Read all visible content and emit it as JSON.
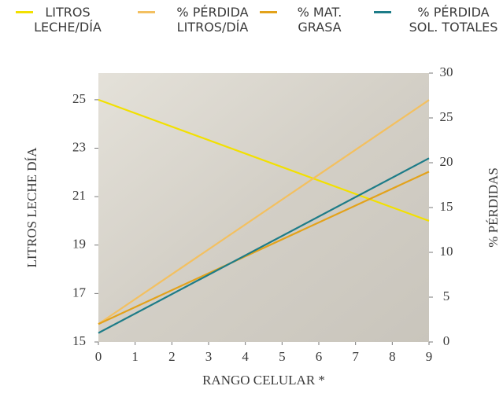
{
  "chart_data": {
    "type": "line",
    "legend": "top",
    "x_label": "RANGO CELULAR *",
    "y_label": "LITROS LECHE DÍA",
    "y2_label": "% PÉRDIDAS",
    "x": [
      0,
      9
    ],
    "xlim": [
      0,
      9
    ],
    "xticks": [
      0,
      1,
      2,
      3,
      4,
      5,
      6,
      7,
      8,
      9
    ],
    "ylim": [
      15,
      26.1
    ],
    "yticks": [
      15,
      17,
      19,
      21,
      23,
      25
    ],
    "y2lim": [
      0,
      30
    ],
    "y2ticks": [
      0,
      5,
      10,
      15,
      20,
      25,
      30
    ],
    "series": [
      {
        "name": "LITROS\nLECHE/DÍA",
        "color": "#f2e000",
        "values": [
          25,
          20
        ]
      },
      {
        "name": "% PÉRDIDA\nLITROS/DÍA",
        "color": "#f3c060",
        "axis": "y2",
        "values": [
          2,
          27
        ]
      },
      {
        "name": "% MAT.\nGRASA",
        "color": "#e3a21a",
        "axis": "y2",
        "values": [
          2,
          19
        ]
      },
      {
        "name": "% PÉRDIDA\nSOL. TOTALES",
        "color": "#1d7c88",
        "axis": "y2",
        "values": [
          1,
          20.5
        ]
      }
    ]
  }
}
